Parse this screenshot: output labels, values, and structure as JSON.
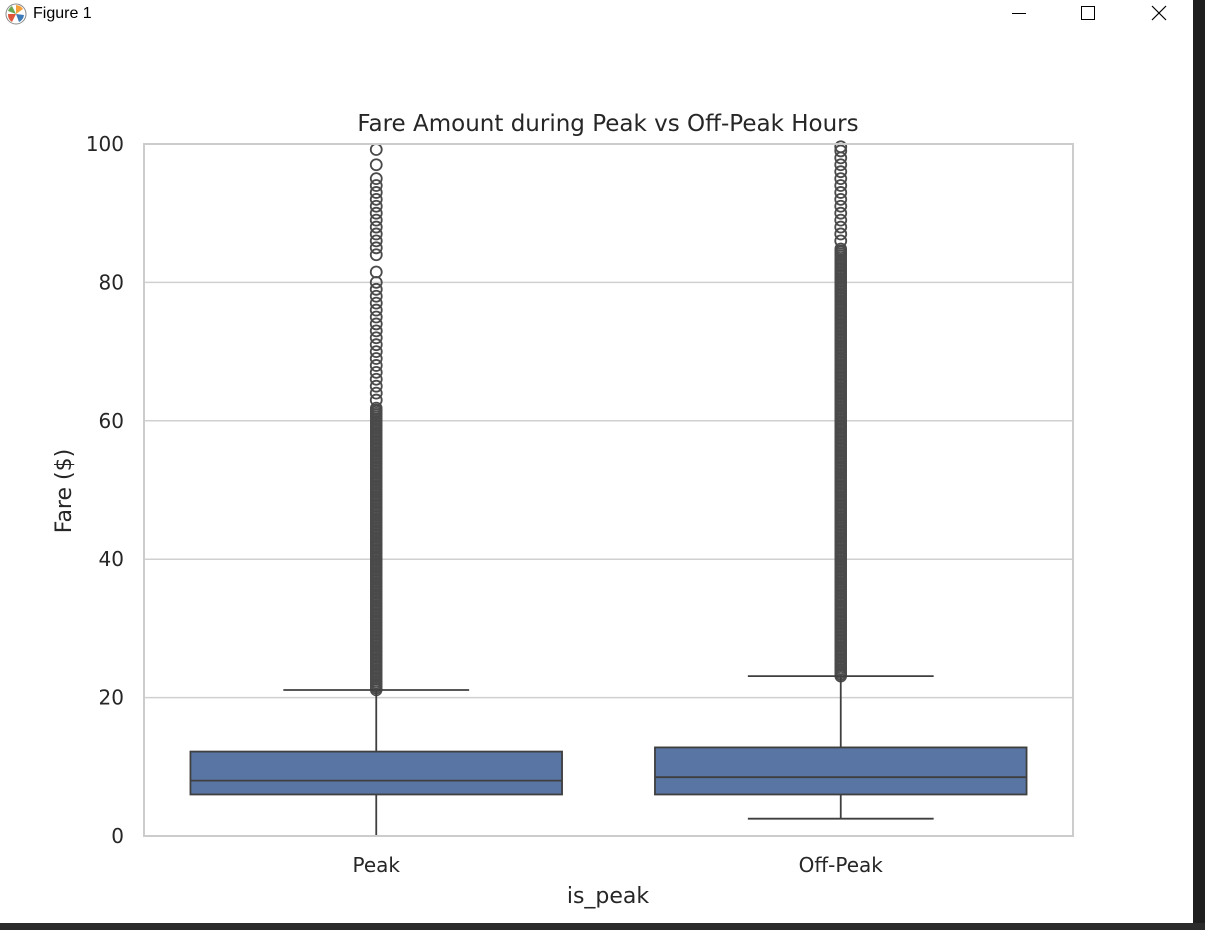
{
  "window": {
    "title": "Figure 1",
    "icon": "matplotlib-logo-icon",
    "controls": [
      "minimize-icon",
      "maximize-icon",
      "close-icon"
    ]
  },
  "colors": {
    "box_fill": "#5875a4",
    "box_edge": "#3f3f3f",
    "grid": "#d0d0d0",
    "spine": "#cccccc",
    "outlier": "#4a4a4a"
  },
  "chart_data": {
    "type": "box",
    "title": "Fare Amount during Peak vs Off-Peak Hours",
    "xlabel": "is_peak",
    "ylabel": "Fare ($)",
    "ylim": [
      0,
      100
    ],
    "yticks": [
      0,
      20,
      40,
      60,
      80,
      100
    ],
    "grid": "horizontal",
    "categories": [
      "Peak",
      "Off-Peak"
    ],
    "boxes": [
      {
        "category": "Peak",
        "whisker_low": 0,
        "q1": 6,
        "median": 8,
        "q3": 12.2,
        "whisker_high": 21.1,
        "outliers_dense_from": 21.1,
        "outliers_dense_to": 62,
        "outliers_sparse": [
          63,
          64,
          65,
          66,
          67,
          68,
          69,
          70,
          71,
          72,
          73,
          74,
          75,
          76,
          77,
          78,
          79,
          80,
          81.5,
          84,
          85,
          86,
          87,
          88,
          89,
          90,
          91,
          92,
          93,
          94,
          95,
          97,
          99.2
        ]
      },
      {
        "category": "Off-Peak",
        "whisker_low": 2.5,
        "q1": 6,
        "median": 8.5,
        "q3": 12.8,
        "whisker_high": 23.1,
        "outliers_dense_from": 23.1,
        "outliers_dense_to": 85,
        "outliers_sparse": [
          86,
          87,
          88,
          89,
          90,
          91,
          92,
          93,
          94,
          95,
          96,
          97,
          98,
          99,
          99.6
        ]
      }
    ]
  }
}
